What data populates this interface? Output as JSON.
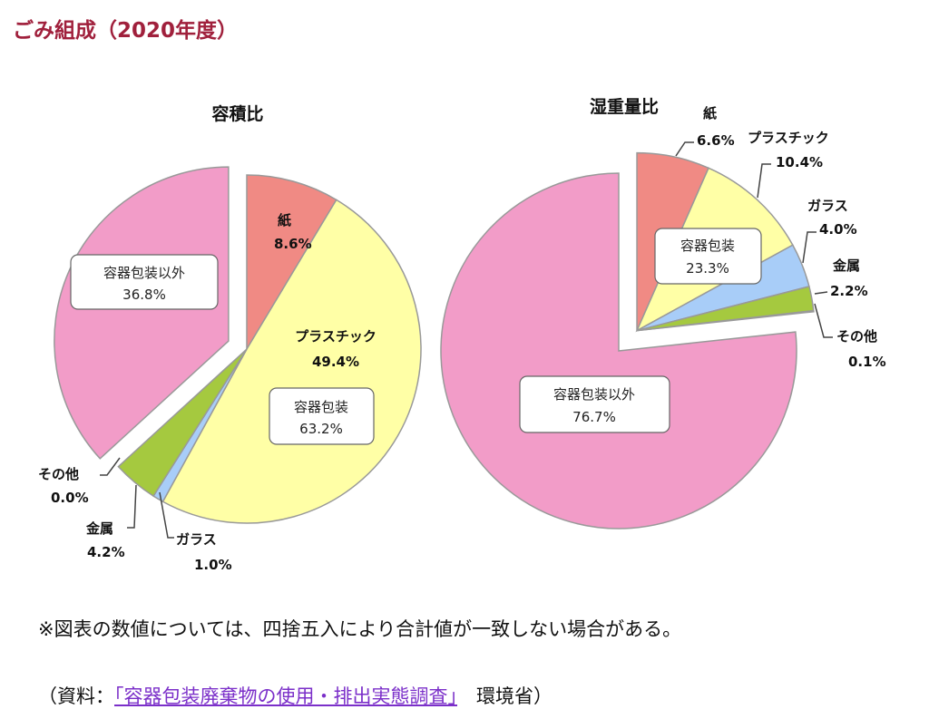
{
  "page_title": "ごみ組成（2020年度）",
  "note": "※図表の数値については、四捨五入により合計値が一致しない場合がある。",
  "source": {
    "prefix": "（資料：",
    "link": "「容器包装廃棄物の使用・排出実態調査」",
    "suffix": "　環境省）"
  },
  "chart_data": [
    {
      "type": "pie",
      "title": "容積比",
      "start": "top",
      "direction": "clockwise",
      "slices": [
        {
          "label": "紙",
          "value": 8.6,
          "display": "8.6%",
          "color": "#f08a84"
        },
        {
          "label": "プラスチック",
          "value": 49.4,
          "display": "49.4%",
          "color": "#ffffa6"
        },
        {
          "label": "ガラス",
          "value": 1.0,
          "display": "1.0%",
          "color": "#a8cdf8"
        },
        {
          "label": "金属",
          "value": 4.2,
          "display": "4.2%",
          "color": "#a5c93f"
        },
        {
          "label": "その他",
          "value": 0.0,
          "display": "0.0%",
          "color": "#c8c8c8"
        },
        {
          "label": "容器包装以外",
          "value": 36.8,
          "display": "36.8%",
          "color": "#f29cc8"
        }
      ],
      "groups": [
        {
          "label": "容器包装",
          "display": "63.2%"
        },
        {
          "label": "容器包装以外",
          "display": "36.8%",
          "exploded": true
        }
      ]
    },
    {
      "type": "pie",
      "title": "湿重量比",
      "start": "top",
      "direction": "clockwise",
      "slices": [
        {
          "label": "紙",
          "value": 6.6,
          "display": "6.6%",
          "color": "#f08a84"
        },
        {
          "label": "プラスチック",
          "value": 10.4,
          "display": "10.4%",
          "color": "#ffffa6"
        },
        {
          "label": "ガラス",
          "value": 4.0,
          "display": "4.0%",
          "color": "#a8cdf8"
        },
        {
          "label": "金属",
          "value": 2.2,
          "display": "2.2%",
          "color": "#a5c93f"
        },
        {
          "label": "その他",
          "value": 0.1,
          "display": "0.1%",
          "color": "#c8c8c8"
        },
        {
          "label": "容器包装以外",
          "value": 76.7,
          "display": "76.7%",
          "color": "#f29cc8"
        }
      ],
      "groups": [
        {
          "label": "容器包装",
          "display": "23.3%",
          "exploded": true
        },
        {
          "label": "容器包装以外",
          "display": "76.7%"
        }
      ]
    }
  ]
}
